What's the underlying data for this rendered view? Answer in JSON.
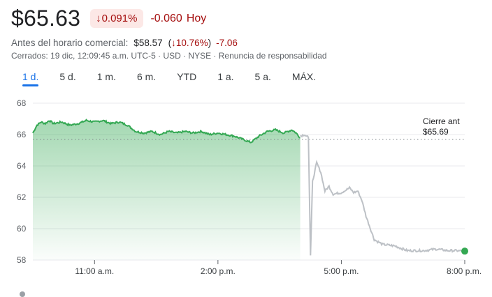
{
  "quote": {
    "price": "$65.63",
    "pct_change": "0.091%",
    "abs_change": "-0.060",
    "period_label": "Hoy",
    "down_arrow_icon": "arrow-down-icon"
  },
  "premarket": {
    "label": "Antes del horario comercial:",
    "price": "$58.57",
    "pct": "10.76%",
    "change": "-7.06"
  },
  "meta_text": "Cerrados: 19 dic, 12:09:45 a.m. UTC-5 · USD · NYSE · Renuncia de responsabilidad",
  "tabs": [
    {
      "label": "1 d.",
      "active": true
    },
    {
      "label": "5 d.",
      "active": false
    },
    {
      "label": "1 m.",
      "active": false
    },
    {
      "label": "6 m.",
      "active": false
    },
    {
      "label": "YTD",
      "active": false
    },
    {
      "label": "1 a.",
      "active": false
    },
    {
      "label": "5 a.",
      "active": false
    },
    {
      "label": "MÁX.",
      "active": false
    }
  ],
  "colors": {
    "up": "#34a853",
    "down": "#a50e0e",
    "accent": "#1a73e8",
    "after_hours": "#bdc1c6"
  },
  "chart_data": {
    "type": "line",
    "title": "",
    "xlabel": "",
    "ylabel": "",
    "ylim": [
      58,
      68
    ],
    "y_ticks": [
      58,
      60,
      62,
      64,
      66,
      68
    ],
    "x_ticks": [
      {
        "t": 11.0,
        "label": "11:00 a.m."
      },
      {
        "t": 14.0,
        "label": "2:00 p.m."
      },
      {
        "t": 17.0,
        "label": "5:00 p.m."
      },
      {
        "t": 20.0,
        "label": "8:00 p.m."
      }
    ],
    "xlim": [
      9.5,
      20.0
    ],
    "grid": true,
    "previous_close": {
      "label": "Cierre ant",
      "value_label": "$65.69",
      "value": 65.69
    },
    "series": [
      {
        "segment": "regular",
        "x": [
          9.5,
          9.6,
          9.7,
          9.8,
          9.9,
          10.0,
          10.2,
          10.4,
          10.6,
          10.8,
          11.0,
          11.2,
          11.4,
          11.6,
          11.8,
          12.0,
          12.2,
          12.4,
          12.6,
          12.8,
          13.0,
          13.2,
          13.4,
          13.6,
          13.8,
          14.0,
          14.2,
          14.4,
          14.6,
          14.8,
          15.0,
          15.2,
          15.4,
          15.6,
          15.8,
          15.9,
          16.0
        ],
        "y": [
          66.1,
          66.6,
          66.8,
          66.7,
          66.9,
          66.7,
          66.8,
          66.6,
          66.7,
          66.9,
          66.8,
          66.9,
          66.7,
          66.8,
          66.6,
          66.2,
          66.1,
          66.2,
          66.0,
          66.2,
          66.1,
          66.2,
          66.1,
          66.2,
          66.0,
          66.1,
          66.0,
          65.9,
          65.7,
          65.5,
          65.9,
          66.2,
          66.3,
          66.1,
          66.3,
          66.1,
          65.8
        ]
      },
      {
        "segment": "after_hours",
        "x": [
          16.0,
          16.1,
          16.2,
          16.25,
          16.3,
          16.4,
          16.5,
          16.6,
          16.7,
          16.8,
          17.0,
          17.2,
          17.3,
          17.4,
          17.5,
          17.6,
          17.8,
          18.0,
          18.3,
          18.6,
          19.0,
          19.3,
          19.6,
          19.8,
          20.0
        ],
        "y": [
          65.9,
          66.0,
          65.8,
          58.3,
          63.0,
          64.2,
          63.6,
          62.4,
          62.7,
          62.2,
          62.3,
          62.6,
          62.3,
          62.4,
          61.8,
          60.8,
          59.3,
          59.0,
          58.9,
          58.6,
          58.6,
          58.7,
          58.6,
          58.6,
          58.57
        ]
      }
    ]
  }
}
